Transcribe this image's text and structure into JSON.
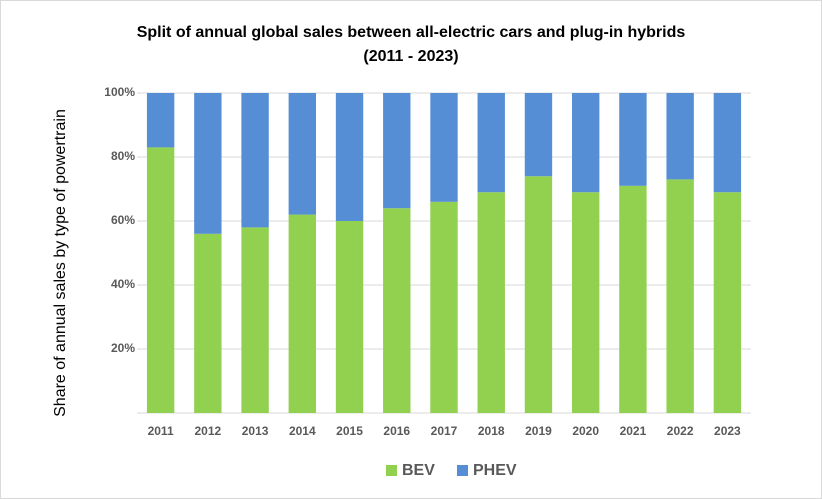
{
  "chart_data": {
    "type": "bar",
    "stacked": true,
    "title_line1": "Split of annual global sales between all-electric cars and plug-in hybrids",
    "title_line2": "(2011 - 2023)",
    "ylabel": "Share of annual sales by type of powertrain",
    "xlabel": "",
    "ylim": [
      0,
      100
    ],
    "yticks": [
      "20%",
      "40%",
      "60%",
      "80%",
      "100%"
    ],
    "ytick_values": [
      20,
      40,
      60,
      80,
      100
    ],
    "categories": [
      "2011",
      "2012",
      "2013",
      "2014",
      "2015",
      "2016",
      "2017",
      "2018",
      "2019",
      "2020",
      "2021",
      "2022",
      "2023"
    ],
    "series": [
      {
        "name": "BEV",
        "color": "#92d050",
        "values": [
          83,
          56,
          58,
          62,
          60,
          64,
          66,
          69,
          74,
          69,
          71,
          73,
          69
        ]
      },
      {
        "name": "PHEV",
        "color": "#558ed5",
        "values": [
          17,
          44,
          42,
          38,
          40,
          36,
          34,
          31,
          26,
          31,
          29,
          27,
          31
        ]
      }
    ],
    "grid": true,
    "legend_position": "bottom"
  }
}
